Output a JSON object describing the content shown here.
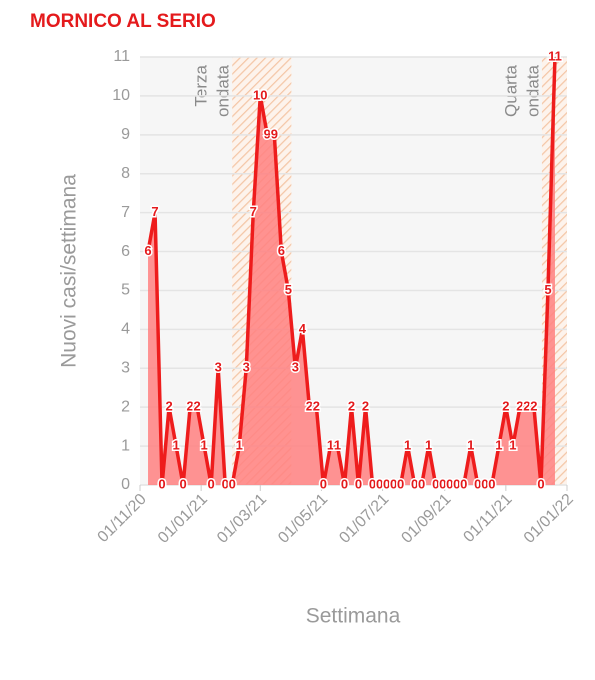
{
  "chart_data": {
    "type": "area",
    "title": "MORNICO AL SERIO",
    "x_label": "Settimana",
    "y_label": "Nuovi casi/settimana",
    "line_color": "#ee1c1c",
    "fill_color": "#ff8080",
    "grid": true,
    "xlim": [
      "2020-11-01",
      "2022-01-01"
    ],
    "xticks": [
      {
        "value": "2020-11-01",
        "label": "01/11/20"
      },
      {
        "value": "2021-01-01",
        "label": "01/01/21"
      },
      {
        "value": "2021-03-01",
        "label": "01/03/21"
      },
      {
        "value": "2021-05-01",
        "label": "01/05/21"
      },
      {
        "value": "2021-07-01",
        "label": "01/07/21"
      },
      {
        "value": "2021-09-01",
        "label": "01/09/21"
      },
      {
        "value": "2021-11-01",
        "label": "01/11/21"
      },
      {
        "value": "2022-01-01",
        "label": "01/01/22"
      }
    ],
    "ylim": [
      0,
      11
    ],
    "yticks": [
      0,
      1,
      2,
      3,
      4,
      5,
      6,
      7,
      8,
      9,
      10,
      11
    ],
    "regions": [
      {
        "label": [
          "Terza",
          "ondata"
        ],
        "start": "2021-02-01",
        "end": "2021-04-01"
      },
      {
        "label": [
          "Quarta",
          "ondata"
        ],
        "start": "2021-12-07",
        "end": "2022-01-01"
      }
    ],
    "x": [
      "2020-11-09",
      "2020-11-16",
      "2020-11-23",
      "2020-11-30",
      "2020-12-07",
      "2020-12-14",
      "2020-12-21",
      "2020-12-28",
      "2021-01-04",
      "2021-01-11",
      "2021-01-18",
      "2021-01-25",
      "2021-02-01",
      "2021-02-08",
      "2021-02-15",
      "2021-02-22",
      "2021-03-01",
      "2021-03-08",
      "2021-03-15",
      "2021-03-22",
      "2021-03-29",
      "2021-04-05",
      "2021-04-12",
      "2021-04-19",
      "2021-04-26",
      "2021-05-03",
      "2021-05-10",
      "2021-05-17",
      "2021-05-24",
      "2021-05-31",
      "2021-06-07",
      "2021-06-14",
      "2021-06-21",
      "2021-06-28",
      "2021-07-05",
      "2021-07-12",
      "2021-07-19",
      "2021-07-26",
      "2021-08-02",
      "2021-08-09",
      "2021-08-16",
      "2021-08-23",
      "2021-08-30",
      "2021-09-06",
      "2021-09-13",
      "2021-09-20",
      "2021-09-27",
      "2021-10-04",
      "2021-10-11",
      "2021-10-18",
      "2021-10-25",
      "2021-11-01",
      "2021-11-08",
      "2021-11-15",
      "2021-11-22",
      "2021-11-29",
      "2021-12-06",
      "2021-12-13",
      "2021-12-20"
    ],
    "values": [
      6,
      7,
      0,
      2,
      1,
      0,
      2,
      2,
      1,
      0,
      3,
      0,
      0,
      1,
      3,
      7,
      10,
      9,
      9,
      6,
      5,
      3,
      4,
      2,
      2,
      0,
      1,
      1,
      0,
      2,
      0,
      2,
      0,
      0,
      0,
      0,
      0,
      1,
      0,
      0,
      1,
      0,
      0,
      0,
      0,
      0,
      1,
      0,
      0,
      0,
      1,
      2,
      1,
      2,
      2,
      2,
      0,
      5,
      11
    ]
  }
}
